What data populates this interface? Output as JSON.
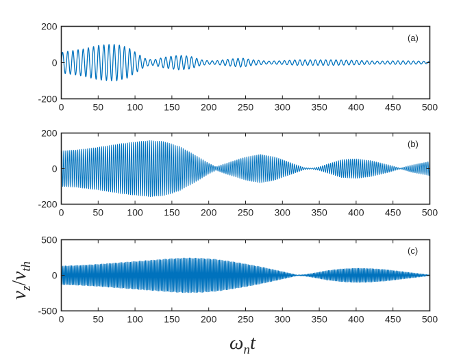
{
  "chart_data": [
    {
      "type": "line",
      "panel_label": "(a)",
      "xlim": [
        0,
        500
      ],
      "ylim": [
        -200,
        200
      ],
      "x_ticks": [
        0,
        50,
        100,
        150,
        200,
        250,
        300,
        350,
        400,
        450,
        500
      ],
      "y_ticks": [
        -200,
        0,
        200
      ],
      "x_tick_labels": [
        "0",
        "50",
        "100",
        "150",
        "200",
        "250",
        "300",
        "350",
        "400",
        "450",
        "500"
      ],
      "y_tick_labels": [
        "-200",
        "0",
        "200"
      ],
      "series": [
        {
          "color": "#0072BD",
          "carrier_period": 7,
          "envelope": {
            "x": [
              0,
              5,
              30,
              50,
              65,
              75,
              90,
              105,
              115,
              125,
              140,
              160,
              175,
              190,
              200,
              210,
              230,
              245,
              260,
              280,
              300,
              320,
              350,
              370,
              400,
              430,
              460,
              490,
              500
            ],
            "y": [
              55,
              60,
              75,
              95,
              100,
              100,
              85,
              45,
              20,
              15,
              30,
              40,
              35,
              15,
              10,
              10,
              20,
              25,
              15,
              8,
              10,
              15,
              15,
              15,
              12,
              8,
              10,
              8,
              5
            ]
          }
        }
      ]
    },
    {
      "type": "line",
      "panel_label": "(b)",
      "xlim": [
        0,
        500
      ],
      "ylim": [
        -200,
        200
      ],
      "x_ticks": [
        0,
        50,
        100,
        150,
        200,
        250,
        300,
        350,
        400,
        450,
        500
      ],
      "y_ticks": [
        -200,
        0,
        200
      ],
      "x_tick_labels": [
        "0",
        "50",
        "100",
        "150",
        "200",
        "250",
        "300",
        "350",
        "400",
        "450",
        "500"
      ],
      "y_tick_labels": [
        "-200",
        "0",
        "200"
      ],
      "series": [
        {
          "color": "#0072BD",
          "carrier_period": 2.7,
          "envelope": {
            "x": [
              0,
              20,
              50,
              80,
              100,
              120,
              140,
              160,
              180,
              200,
              210,
              220,
              250,
              270,
              290,
              310,
              330,
              340,
              350,
              380,
              400,
              420,
              445,
              460,
              475,
              500
            ],
            "y": [
              100,
              105,
              120,
              140,
              150,
              158,
              152,
              125,
              80,
              30,
              10,
              25,
              65,
              80,
              65,
              35,
              5,
              2,
              10,
              50,
              55,
              45,
              20,
              2,
              20,
              40
            ]
          }
        }
      ]
    },
    {
      "type": "line",
      "panel_label": "(c)",
      "xlim": [
        0,
        500
      ],
      "ylim": [
        -500,
        500
      ],
      "x_ticks": [
        0,
        50,
        100,
        150,
        200,
        250,
        300,
        350,
        400,
        450,
        500
      ],
      "y_ticks": [
        -500,
        0,
        500
      ],
      "x_tick_labels": [
        "0",
        "50",
        "100",
        "150",
        "200",
        "250",
        "300",
        "350",
        "400",
        "450",
        "500"
      ],
      "y_tick_labels": [
        "-500",
        "0",
        "500"
      ],
      "series": [
        {
          "color": "#0072BD",
          "carrier_period": 1.7,
          "envelope": {
            "x": [
              0,
              25,
              50,
              75,
              100,
              125,
              150,
              170,
              190,
              210,
              230,
              250,
              270,
              290,
              305,
              320,
              330,
              345,
              360,
              380,
              400,
              420,
              440,
              460,
              480,
              500
            ],
            "y": [
              130,
              140,
              155,
              175,
              195,
              215,
              235,
              245,
              240,
              225,
              195,
              160,
              120,
              75,
              40,
              5,
              10,
              35,
              65,
              90,
              100,
              95,
              80,
              55,
              30,
              5
            ]
          }
        }
      ]
    }
  ],
  "y_label": "v_z / v_th",
  "y_label_parts": {
    "v1": "v",
    "sub1": "z",
    "slash": "/",
    "v2": "v",
    "sub2": "th"
  },
  "x_label": "ω_n t",
  "x_label_parts": {
    "omega": "ω",
    "sub": "n",
    "t": "t"
  }
}
